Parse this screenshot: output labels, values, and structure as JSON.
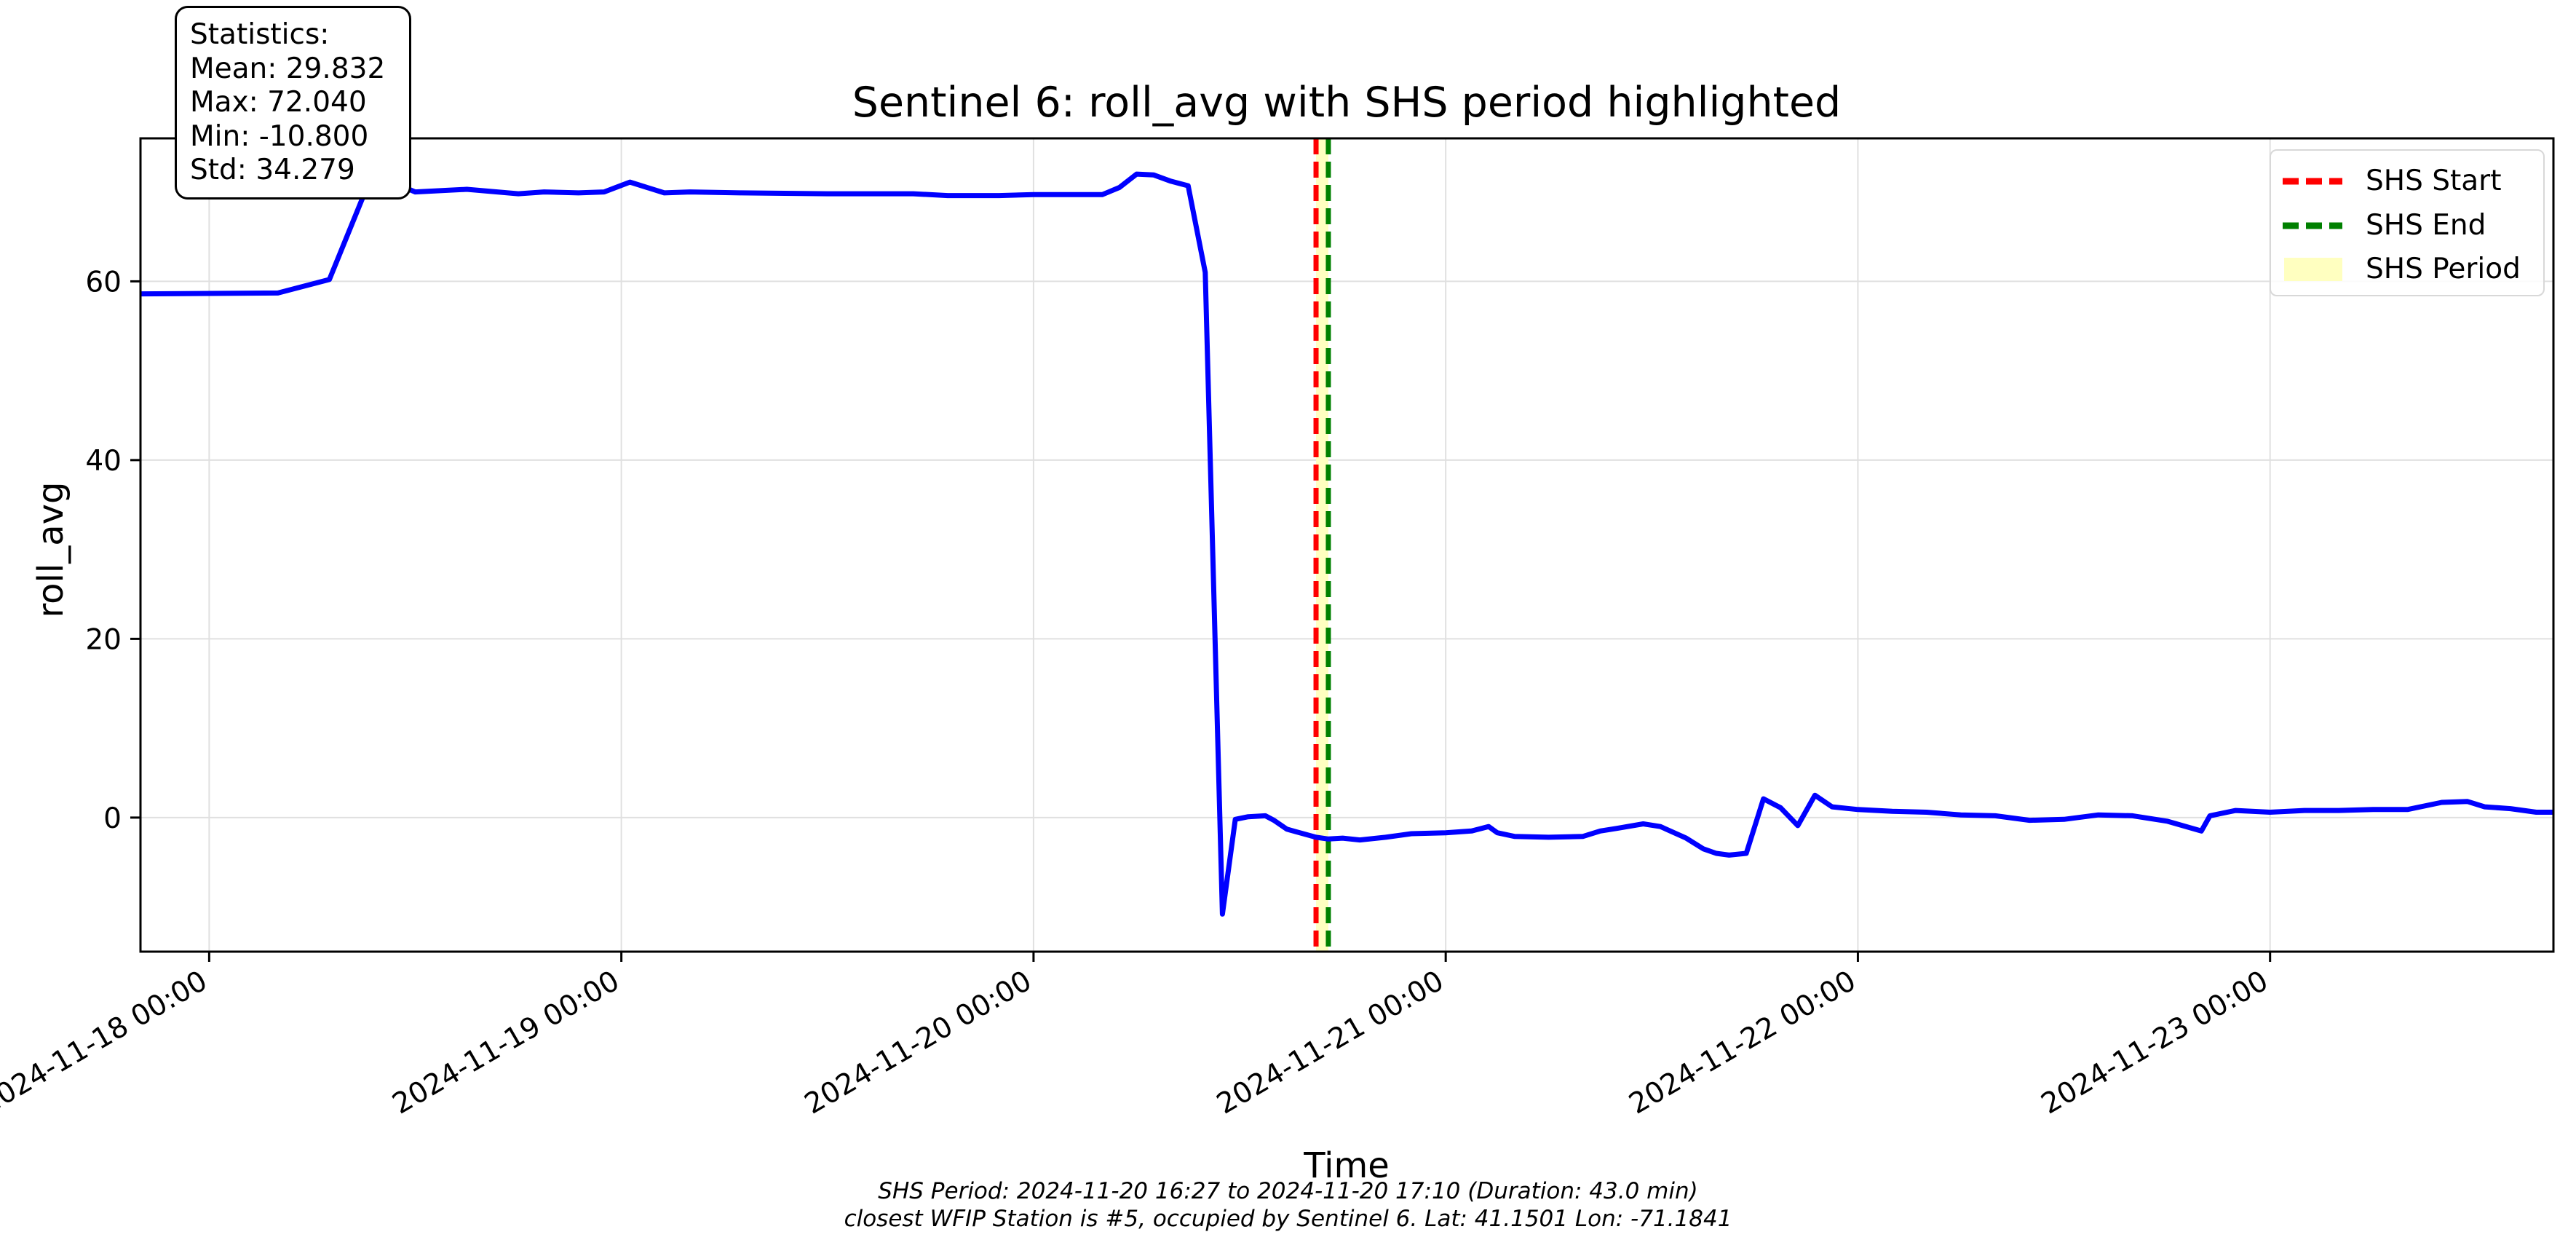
{
  "chart_data": {
    "type": "line",
    "title": "Sentinel 6: roll_avg with SHS period highlighted",
    "xlabel": "Time",
    "ylabel": "roll_avg",
    "xlim": [
      "2024-11-17 20:00",
      "2024-11-23 16:30"
    ],
    "ylim": [
      -15,
      76
    ],
    "grid": true,
    "legend_position": "upper-right",
    "x_ticks": [
      "2024-11-18 00:00",
      "2024-11-19 00:00",
      "2024-11-20 00:00",
      "2024-11-21 00:00",
      "2024-11-22 00:00",
      "2024-11-23 00:00"
    ],
    "y_ticks": [
      0,
      20,
      40,
      60
    ],
    "series": [
      {
        "color": "#0000ff",
        "points": [
          [
            "2024-11-17 20:00",
            58.6
          ],
          [
            "2024-11-18 04:00",
            58.7
          ],
          [
            "2024-11-18 07:00",
            60.2
          ],
          [
            "2024-11-18 09:30",
            72.0
          ],
          [
            "2024-11-18 12:00",
            70.0
          ],
          [
            "2024-11-18 15:00",
            70.3
          ],
          [
            "2024-11-18 18:00",
            69.8
          ],
          [
            "2024-11-18 19:30",
            70.0
          ],
          [
            "2024-11-18 21:30",
            69.9
          ],
          [
            "2024-11-18 23:00",
            70.0
          ],
          [
            "2024-11-19 00:30",
            71.1
          ],
          [
            "2024-11-19 02:30",
            69.9
          ],
          [
            "2024-11-19 04:00",
            70.0
          ],
          [
            "2024-11-19 07:00",
            69.9
          ],
          [
            "2024-11-19 12:00",
            69.8
          ],
          [
            "2024-11-19 17:00",
            69.8
          ],
          [
            "2024-11-19 19:00",
            69.6
          ],
          [
            "2024-11-19 22:00",
            69.6
          ],
          [
            "2024-11-20 00:00",
            69.7
          ],
          [
            "2024-11-20 04:00",
            69.7
          ],
          [
            "2024-11-20 05:00",
            70.5
          ],
          [
            "2024-11-20 06:00",
            72.0
          ],
          [
            "2024-11-20 07:00",
            71.9
          ],
          [
            "2024-11-20 08:00",
            71.2
          ],
          [
            "2024-11-20 09:00",
            70.7
          ],
          [
            "2024-11-20 10:00",
            61.0
          ],
          [
            "2024-11-20 11:00",
            -10.8
          ],
          [
            "2024-11-20 11:45",
            -0.2
          ],
          [
            "2024-11-20 12:30",
            0.1
          ],
          [
            "2024-11-20 13:30",
            0.2
          ],
          [
            "2024-11-20 14:00",
            -0.3
          ],
          [
            "2024-11-20 14:45",
            -1.3
          ],
          [
            "2024-11-20 16:27",
            -2.2
          ],
          [
            "2024-11-20 17:10",
            -2.4
          ],
          [
            "2024-11-20 18:00",
            -2.3
          ],
          [
            "2024-11-20 19:00",
            -2.5
          ],
          [
            "2024-11-20 20:30",
            -2.2
          ],
          [
            "2024-11-20 22:00",
            -1.8
          ],
          [
            "2024-11-21 00:00",
            -1.7
          ],
          [
            "2024-11-21 01:30",
            -1.5
          ],
          [
            "2024-11-21 02:30",
            -1.0
          ],
          [
            "2024-11-21 03:00",
            -1.7
          ],
          [
            "2024-11-21 04:00",
            -2.1
          ],
          [
            "2024-11-21 06:00",
            -2.2
          ],
          [
            "2024-11-21 08:00",
            -2.1
          ],
          [
            "2024-11-21 09:00",
            -1.5
          ],
          [
            "2024-11-21 10:00",
            -1.2
          ],
          [
            "2024-11-21 11:30",
            -0.7
          ],
          [
            "2024-11-21 12:30",
            -1.0
          ],
          [
            "2024-11-21 14:00",
            -2.3
          ],
          [
            "2024-11-21 15:00",
            -3.5
          ],
          [
            "2024-11-21 15:45",
            -4.0
          ],
          [
            "2024-11-21 16:30",
            -4.2
          ],
          [
            "2024-11-21 17:30",
            -4.0
          ],
          [
            "2024-11-21 18:30",
            2.1
          ],
          [
            "2024-11-21 19:30",
            1.1
          ],
          [
            "2024-11-21 20:30",
            -0.9
          ],
          [
            "2024-11-21 21:30",
            2.5
          ],
          [
            "2024-11-21 22:30",
            1.2
          ],
          [
            "2024-11-22 00:00",
            0.9
          ],
          [
            "2024-11-22 02:00",
            0.7
          ],
          [
            "2024-11-22 04:00",
            0.6
          ],
          [
            "2024-11-22 06:00",
            0.3
          ],
          [
            "2024-11-22 08:00",
            0.2
          ],
          [
            "2024-11-22 10:00",
            -0.3
          ],
          [
            "2024-11-22 12:00",
            -0.2
          ],
          [
            "2024-11-22 14:00",
            0.3
          ],
          [
            "2024-11-22 16:00",
            0.2
          ],
          [
            "2024-11-22 18:00",
            -0.4
          ],
          [
            "2024-11-22 20:00",
            -1.5
          ],
          [
            "2024-11-22 20:30",
            0.2
          ],
          [
            "2024-11-22 22:00",
            0.8
          ],
          [
            "2024-11-23 00:00",
            0.6
          ],
          [
            "2024-11-23 02:00",
            0.8
          ],
          [
            "2024-11-23 04:00",
            0.8
          ],
          [
            "2024-11-23 06:00",
            0.9
          ],
          [
            "2024-11-23 08:00",
            0.9
          ],
          [
            "2024-11-23 10:00",
            1.7
          ],
          [
            "2024-11-23 11:30",
            1.8
          ],
          [
            "2024-11-23 12:30",
            1.2
          ],
          [
            "2024-11-23 14:00",
            1.0
          ],
          [
            "2024-11-23 15:30",
            0.6
          ],
          [
            "2024-11-23 16:30",
            0.6
          ]
        ]
      }
    ],
    "shs_start": "2024-11-20 16:27",
    "shs_end": "2024-11-20 17:10",
    "colors": {
      "line": "#0000ff",
      "start": "#ff0000",
      "end": "#008000",
      "period": "#ffffc0"
    }
  },
  "legend": {
    "start_label": "SHS Start",
    "end_label": "SHS End",
    "period_label": "SHS Period"
  },
  "stats": {
    "heading": "Statistics:",
    "mean": "Mean: 29.832",
    "max": "Max: 72.040",
    "min": "Min: -10.800",
    "std": "Std: 34.279"
  },
  "footer": {
    "line1": "SHS Period: 2024-11-20 16:27 to 2024-11-20 17:10 (Duration: 43.0 min)",
    "line2": "closest WFIP Station is #5, occupied by Sentinel 6. Lat: 41.1501 Lon: -71.1841"
  }
}
